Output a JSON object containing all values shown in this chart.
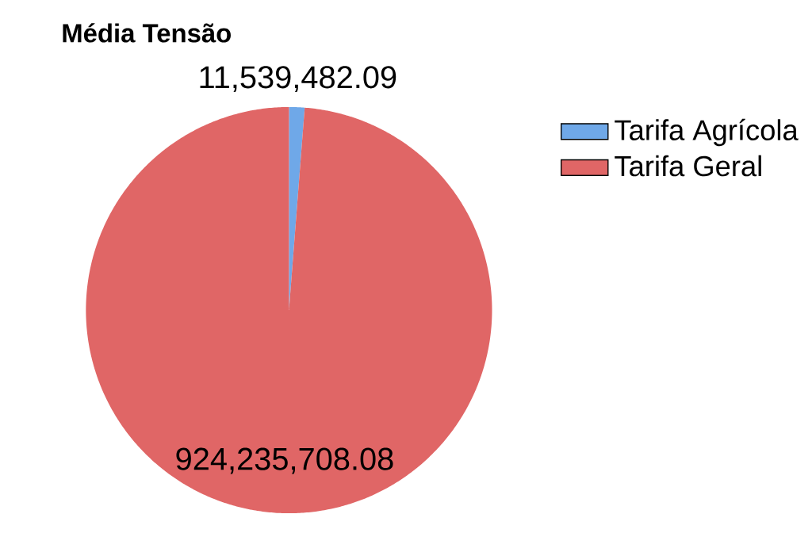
{
  "chart_data": {
    "type": "pie",
    "title": "Média Tensão",
    "categories": [
      "Tarifa Agrícola",
      "Tarifa Geral"
    ],
    "values": [
      11539482.09,
      924235708.08
    ],
    "colors": [
      "#6fa8e8",
      "#e06666"
    ],
    "value_labels": [
      "11,539,482.09",
      "924,235,708.08"
    ],
    "legend": "right"
  }
}
